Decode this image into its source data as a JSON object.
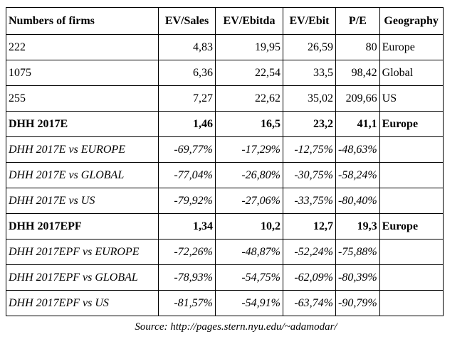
{
  "table": {
    "header": [
      "Numbers of firms",
      "EV/Sales",
      "EV/Ebitda",
      "EV/Ebit",
      "P/E",
      "Geography"
    ],
    "rows": [
      [
        "222",
        "4,83",
        "19,95",
        "26,59",
        "80",
        "Europe"
      ],
      [
        "1075",
        "6,36",
        "22,54",
        "33,5",
        "98,42",
        "Global"
      ],
      [
        "255",
        "7,27",
        "22,62",
        "35,02",
        "209,66",
        "US"
      ],
      [
        "DHH 2017E",
        "1,46",
        "16,5",
        "23,2",
        "41,1",
        "Europe"
      ],
      [
        "DHH 2017E vs EUROPE",
        "-69,77%",
        "-17,29%",
        "-12,75%",
        "-48,63%"
      ],
      [
        "DHH 2017E vs GLOBAL",
        "-77,04%",
        "-26,80%",
        "-30,75%",
        "-58,24%"
      ],
      [
        "DHH 2017E vs US",
        "-79,92%",
        "-27,06%",
        "-33,75%",
        "-80,40%"
      ],
      [
        "DHH 2017EPF",
        "1,34",
        "10,2",
        "12,7",
        "19,3",
        "Europe"
      ],
      [
        "DHH 2017EPF vs EUROPE",
        "-72,26%",
        "-48,87%",
        "-52,24%",
        "-75,88%"
      ],
      [
        "DHH 2017EPF vs GLOBAL",
        "-78,93%",
        "-54,75%",
        "-62,09%",
        "-80,39%"
      ],
      [
        "DHH 2017EPF vs US",
        "-81,57%",
        "-54,91%",
        "-63,74%",
        "-90,79%"
      ]
    ]
  },
  "source": "Source: http://pages.stern.nyu.edu/~adamodar/"
}
